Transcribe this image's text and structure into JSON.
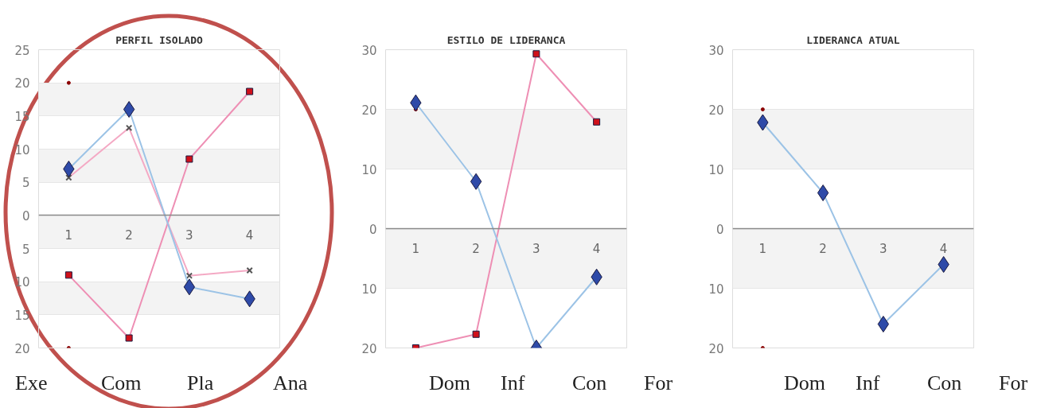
{
  "chart_data": [
    {
      "type": "line",
      "title": "PERFIL ISOLADO",
      "categories": [
        "1",
        "2",
        "3",
        "4"
      ],
      "ylim": [
        -20,
        25
      ],
      "yticks": [
        {
          "value": -20,
          "label": "20"
        },
        {
          "value": -15,
          "label": "15"
        },
        {
          "value": -10,
          "label": "10"
        },
        {
          "value": -5,
          "label": "5"
        },
        0,
        5,
        10,
        15,
        20,
        25
      ],
      "grid": true,
      "annotations": [
        "Exe",
        "Com",
        "Pla",
        "Ana"
      ],
      "series": [
        {
          "color": "#f4a9c4",
          "marker": "cross",
          "colors": [
            "#555555",
            "#555555",
            "#555555",
            "#555555"
          ],
          "values": [
            5.7,
            13.2,
            -9.1,
            -8.3
          ]
        },
        {
          "color": "#ee8fb4",
          "marker": "square",
          "colors": [
            "#d0101a",
            "#d0101a",
            "#d0101a",
            "#d0101a"
          ],
          "values": [
            -9,
            -18.5,
            8.5,
            18.7
          ]
        },
        {
          "color": "#9cc3e6",
          "marker": "diamond",
          "colors": [
            "#2e4aa8",
            "#2e4aa8",
            "#2e4aa8",
            "#2e4aa8"
          ],
          "values": [
            7,
            16,
            -10.8,
            -12.6
          ]
        },
        {
          "type": "scatter",
          "color": "#8b0000",
          "marker": "circle",
          "x": [
            "1",
            "1"
          ],
          "values": [
            20,
            -20
          ]
        }
      ]
    },
    {
      "type": "line",
      "title": "ESTILO DE LIDERANCA",
      "categories": [
        "1",
        "2",
        "3",
        "4"
      ],
      "ylim": [
        -20,
        30
      ],
      "yticks": [
        {
          "value": -20,
          "label": "20"
        },
        {
          "value": -10,
          "label": "10"
        },
        0,
        10,
        20,
        30
      ],
      "grid": true,
      "annotations": [
        "Dom",
        "Inf",
        "Con",
        "For"
      ],
      "series": [
        {
          "type": "scatter",
          "color": "#8b0000",
          "marker": "circle",
          "x": [
            "1"
          ],
          "values": [
            20
          ]
        },
        {
          "color": "#ee8fb4",
          "marker": "square",
          "colors": [
            "#d0101a",
            "#d0101a",
            "#d0101a",
            "#d0101a"
          ],
          "values": [
            -20,
            -17.7,
            29.3,
            17.9
          ]
        },
        {
          "color": "#9cc3e6",
          "marker": "diamond",
          "colors": [
            "#2e4aa8",
            "#2e4aa8",
            "#2e4aa8",
            "#2e4aa8"
          ],
          "values": [
            21.1,
            7.9,
            -20,
            -8.1
          ]
        }
      ]
    },
    {
      "type": "line",
      "title": "LIDERANCA ATUAL",
      "categories": [
        "1",
        "2",
        "3",
        "4"
      ],
      "ylim": [
        -20,
        30
      ],
      "yticks": [
        {
          "value": -20,
          "label": "20"
        },
        {
          "value": -10,
          "label": "10"
        },
        0,
        10,
        20,
        30
      ],
      "grid": true,
      "annotations": [
        "Dom",
        "Inf",
        "Con",
        "For"
      ],
      "series": [
        {
          "type": "scatter",
          "color": "#8b0000",
          "marker": "circle",
          "x": [
            "1",
            "1"
          ],
          "values": [
            20,
            -20
          ]
        },
        {
          "color": "#9cc3e6",
          "marker": "diamond",
          "colors": [
            "#2e4aa8",
            "#2e4aa8",
            "#2e4aa8",
            "#2e4aa8"
          ],
          "values": [
            17.8,
            6,
            -16,
            -6
          ]
        }
      ]
    }
  ]
}
